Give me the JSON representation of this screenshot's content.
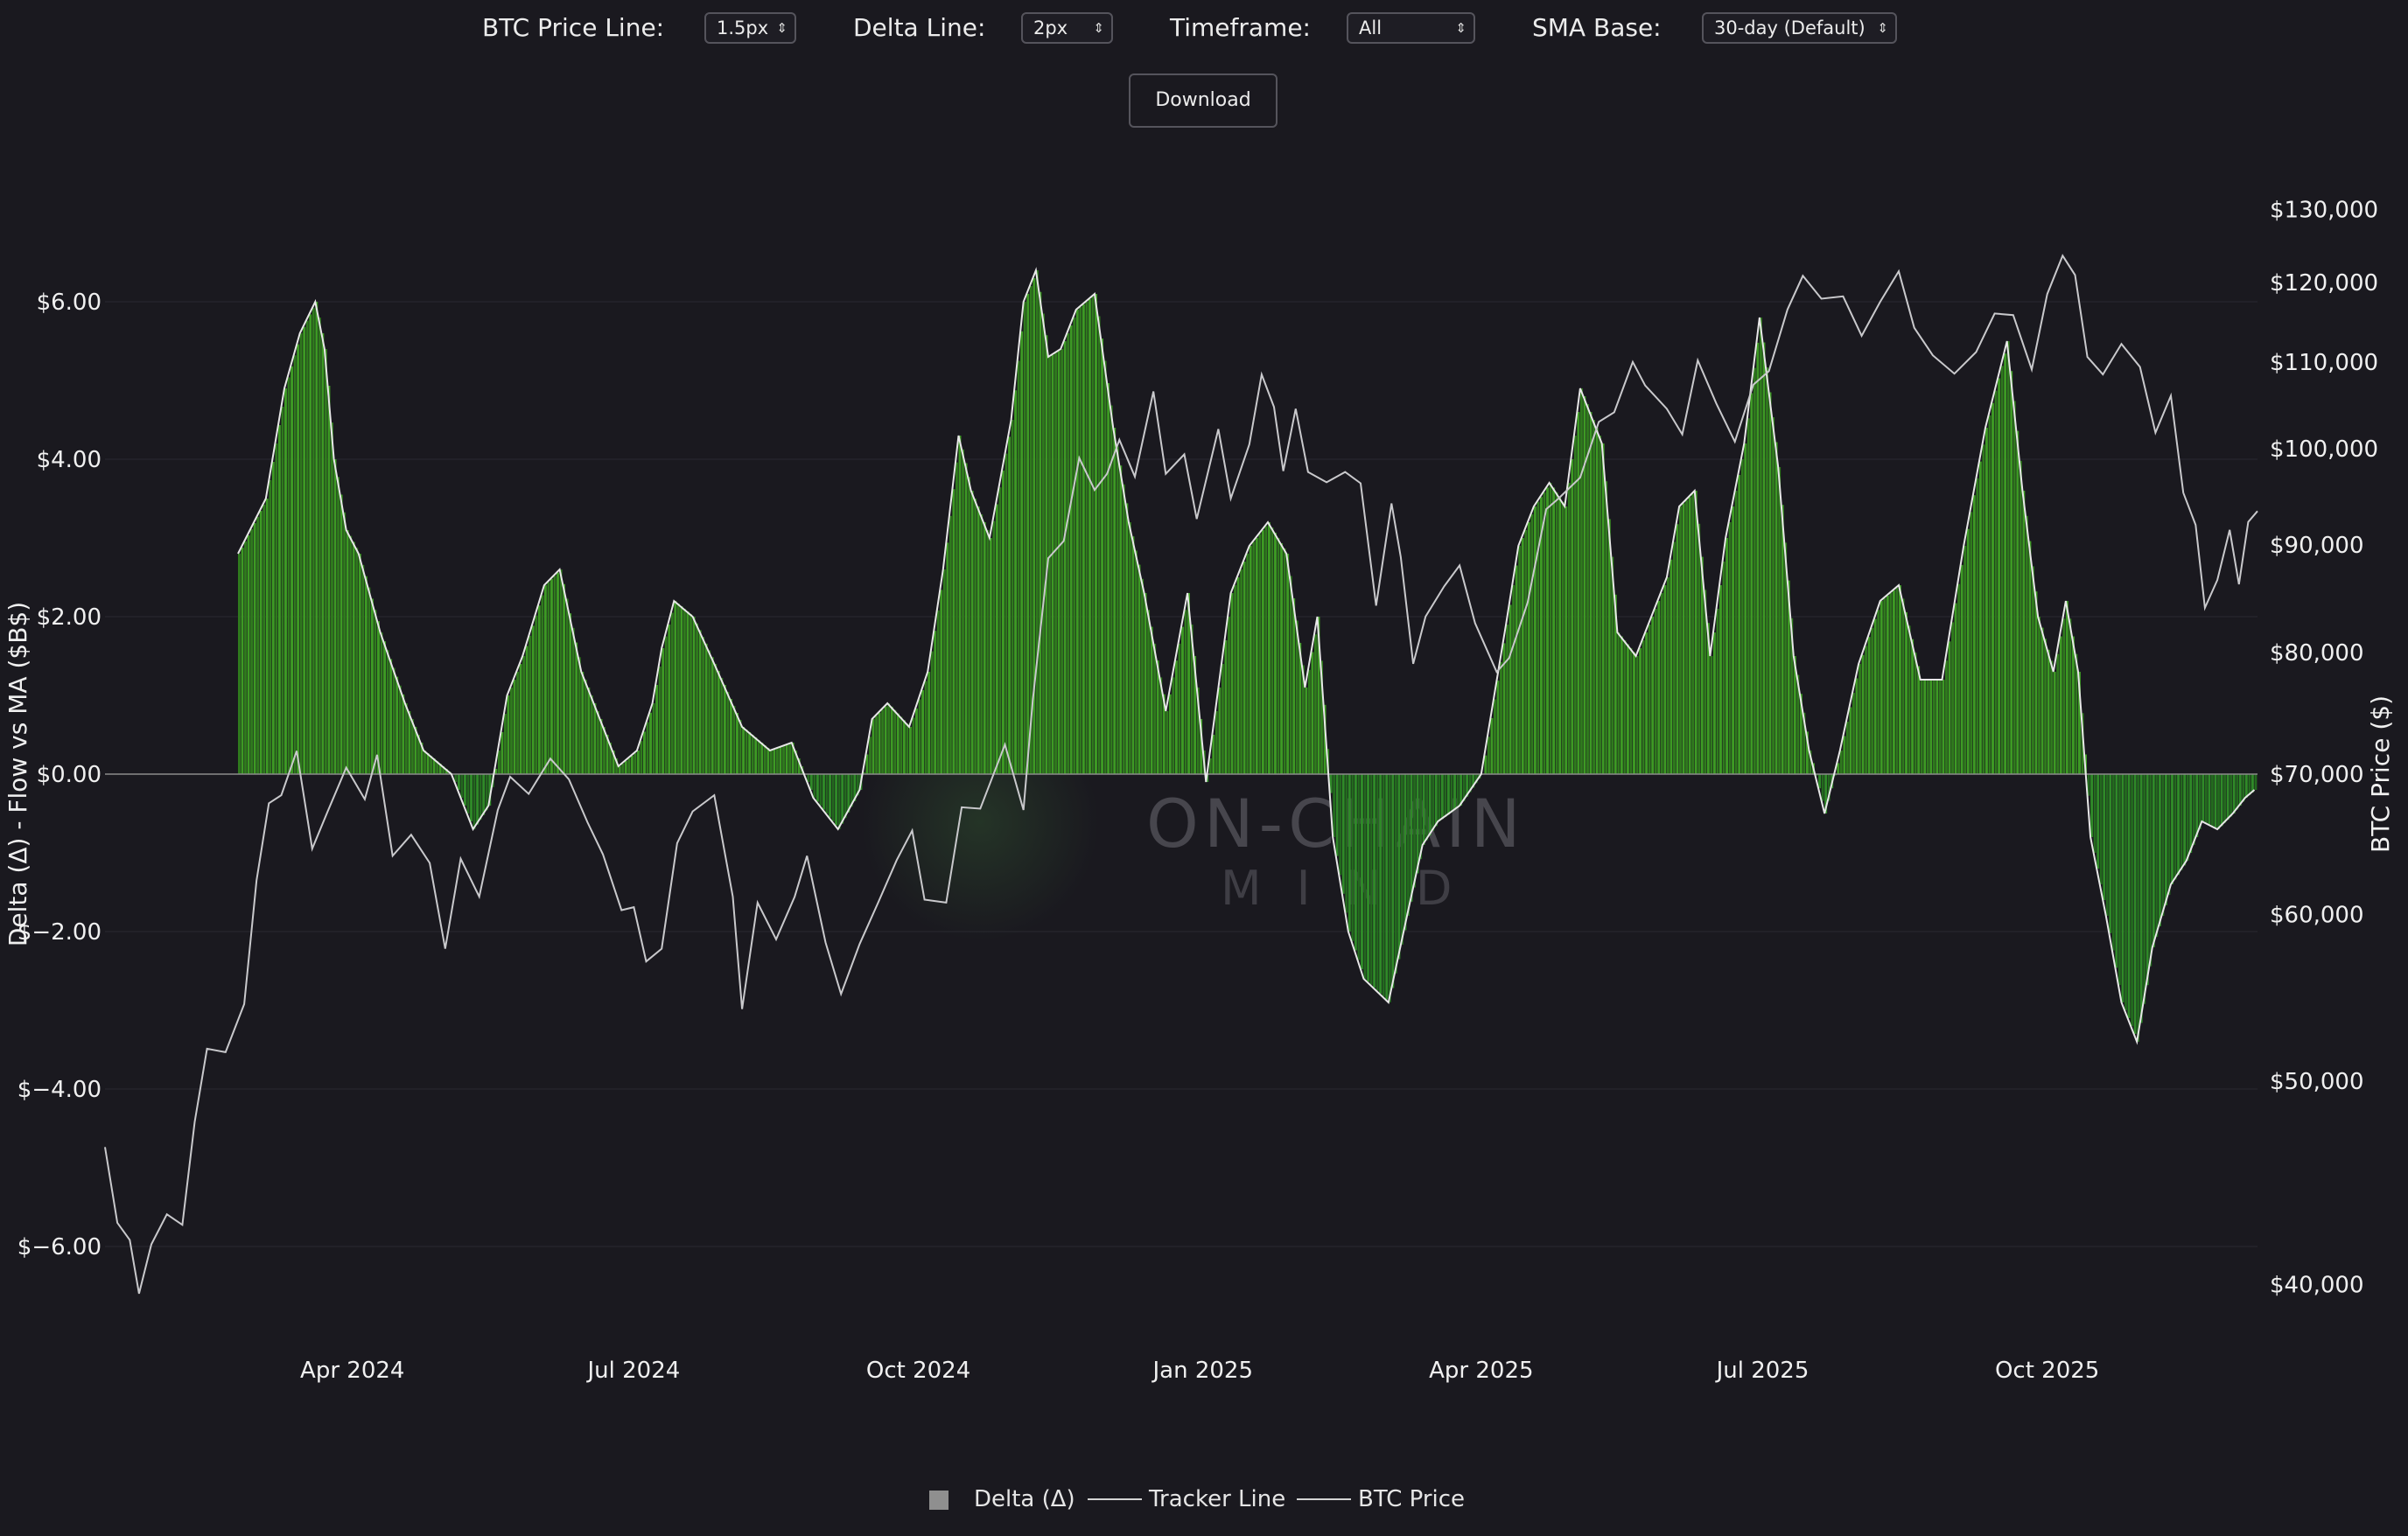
{
  "controls": {
    "price_line_label": "BTC Price Line:",
    "price_line_value": "1.5px",
    "delta_line_label": "Delta Line:",
    "delta_line_value": "2px",
    "timeframe_label": "Timeframe:",
    "timeframe_value": "All",
    "sma_label": "SMA Base:",
    "sma_value": "30-day (Default)",
    "download_label": "Download"
  },
  "watermark": {
    "line1": "ON-CHAIN",
    "line2": "MIND"
  },
  "legend": {
    "delta": "Delta (Δ)",
    "tracker": "Tracker Line",
    "price": "BTC Price"
  },
  "colors": {
    "background": "#1a191f",
    "delta_bar": "#3f9a25",
    "delta_bar_negative": "#2a7a22",
    "line": "#d8d8d8"
  },
  "chart_data": {
    "type": "bar",
    "left_axis": {
      "label": "Delta (Δ) - Flow vs MA ($B$)",
      "ticks": [
        "$6.00",
        "$4.00",
        "$2.00",
        "$0.00",
        "$−2.00",
        "$−4.00",
        "$−6.00"
      ],
      "range": [
        -7,
        7
      ]
    },
    "right_axis": {
      "label": "BTC Price ($)",
      "scale": "log",
      "ticks": [
        "$130,000",
        "$120,000",
        "$110,000",
        "$100,000",
        "$90,000",
        "$80,000",
        "$70,000",
        "$60,000",
        "$50,000",
        "$40,000"
      ],
      "range": [
        38000,
        135000
      ]
    },
    "x_axis": {
      "ticks": [
        "Apr 2024",
        "Jul 2024",
        "Oct 2024",
        "Jan 2025",
        "Apr 2025",
        "Jul 2025",
        "Oct 2025"
      ],
      "range": [
        "2024-01-12",
        "2025-12-08"
      ]
    },
    "delta": {
      "x": [
        "2024-02-24",
        "2024-03-04",
        "2024-03-10",
        "2024-03-15",
        "2024-03-20",
        "2024-03-23",
        "2024-03-26",
        "2024-03-30",
        "2024-04-03",
        "2024-04-10",
        "2024-04-18",
        "2024-04-24",
        "2024-05-03",
        "2024-05-10",
        "2024-05-15",
        "2024-05-21",
        "2024-05-26",
        "2024-06-02",
        "2024-06-07",
        "2024-06-14",
        "2024-06-22",
        "2024-06-26",
        "2024-07-02",
        "2024-07-07",
        "2024-07-10",
        "2024-07-14",
        "2024-07-20",
        "2024-07-27",
        "2024-08-05",
        "2024-08-14",
        "2024-08-21",
        "2024-08-28",
        "2024-09-05",
        "2024-09-12",
        "2024-09-16",
        "2024-09-21",
        "2024-09-28",
        "2024-10-04",
        "2024-10-09",
        "2024-10-14",
        "2024-10-18",
        "2024-10-24",
        "2024-10-31",
        "2024-11-04",
        "2024-11-08",
        "2024-11-12",
        "2024-11-16",
        "2024-11-21",
        "2024-11-27",
        "2024-12-03",
        "2024-12-08",
        "2024-12-13",
        "2024-12-20",
        "2024-12-27",
        "2025-01-02",
        "2025-01-10",
        "2025-01-16",
        "2025-01-22",
        "2025-01-28",
        "2025-02-03",
        "2025-02-07",
        "2025-02-12",
        "2025-02-17",
        "2025-02-22",
        "2025-03-02",
        "2025-03-08",
        "2025-03-13",
        "2025-03-18",
        "2025-03-25",
        "2025-04-01",
        "2025-04-09",
        "2025-04-13",
        "2025-04-18",
        "2025-04-23",
        "2025-04-28",
        "2025-05-03",
        "2025-05-10",
        "2025-05-15",
        "2025-05-21",
        "2025-05-26",
        "2025-05-31",
        "2025-06-04",
        "2025-06-09",
        "2025-06-14",
        "2025-06-19",
        "2025-06-25",
        "2025-06-30",
        "2025-07-06",
        "2025-07-11",
        "2025-07-16",
        "2025-07-21",
        "2025-07-26",
        "2025-08-01",
        "2025-08-08",
        "2025-08-14",
        "2025-08-21",
        "2025-08-28",
        "2025-09-04",
        "2025-09-11",
        "2025-09-18",
        "2025-09-23",
        "2025-09-28",
        "2025-10-03",
        "2025-10-07",
        "2025-10-11",
        "2025-10-15",
        "2025-10-20",
        "2025-10-25",
        "2025-10-30",
        "2025-11-04",
        "2025-11-10",
        "2025-11-15",
        "2025-11-20",
        "2025-11-25",
        "2025-11-30",
        "2025-12-04",
        "2025-12-07"
      ],
      "values": [
        2.8,
        3.5,
        4.9,
        5.6,
        6.0,
        5.4,
        4.0,
        3.1,
        2.8,
        1.8,
        0.9,
        0.3,
        0.0,
        -0.7,
        -0.4,
        1.0,
        1.5,
        2.4,
        2.6,
        1.3,
        0.5,
        0.1,
        0.3,
        0.9,
        1.6,
        2.2,
        2.0,
        1.4,
        0.6,
        0.3,
        0.4,
        -0.3,
        -0.7,
        -0.2,
        0.7,
        0.9,
        0.6,
        1.3,
        2.6,
        4.3,
        3.6,
        3.0,
        4.5,
        6.0,
        6.4,
        5.3,
        5.4,
        5.9,
        6.1,
        4.4,
        3.2,
        2.3,
        0.8,
        2.3,
        -0.1,
        2.3,
        2.9,
        3.2,
        2.8,
        1.1,
        2.0,
        -0.8,
        -2.0,
        -2.6,
        -2.9,
        -1.8,
        -0.9,
        -0.6,
        -0.4,
        0.0,
        1.9,
        2.9,
        3.4,
        3.7,
        3.4,
        4.9,
        4.2,
        1.8,
        1.5,
        2.0,
        2.5,
        3.4,
        3.6,
        1.5,
        3.0,
        4.2,
        5.8,
        3.9,
        1.5,
        0.3,
        -0.5,
        0.3,
        1.4,
        2.2,
        2.4,
        1.2,
        1.2,
        2.9,
        4.4,
        5.5,
        3.6,
        2.0,
        1.3,
        2.2,
        1.3,
        -0.8,
        -1.8,
        -2.9,
        -3.4,
        -2.2,
        -1.4,
        -1.1,
        -0.6,
        -0.7,
        -0.5,
        -0.3,
        -0.2
      ]
    },
    "btc_price": {
      "x": [
        "2024-01-12",
        "2024-01-16",
        "2024-01-20",
        "2024-01-23",
        "2024-01-27",
        "2024-02-01",
        "2024-02-06",
        "2024-02-10",
        "2024-02-14",
        "2024-02-20",
        "2024-02-26",
        "2024-03-01",
        "2024-03-05",
        "2024-03-09",
        "2024-03-14",
        "2024-03-19",
        "2024-03-24",
        "2024-03-30",
        "2024-04-05",
        "2024-04-09",
        "2024-04-14",
        "2024-04-20",
        "2024-04-26",
        "2024-05-01",
        "2024-05-06",
        "2024-05-12",
        "2024-05-18",
        "2024-05-22",
        "2024-05-28",
        "2024-06-04",
        "2024-06-10",
        "2024-06-16",
        "2024-06-21",
        "2024-06-27",
        "2024-07-01",
        "2024-07-05",
        "2024-07-10",
        "2024-07-15",
        "2024-07-20",
        "2024-07-27",
        "2024-08-02",
        "2024-08-05",
        "2024-08-10",
        "2024-08-16",
        "2024-08-22",
        "2024-08-26",
        "2024-09-01",
        "2024-09-06",
        "2024-09-12",
        "2024-09-18",
        "2024-09-24",
        "2024-09-29",
        "2024-10-03",
        "2024-10-10",
        "2024-10-15",
        "2024-10-21",
        "2024-10-29",
        "2024-11-04",
        "2024-11-07",
        "2024-11-12",
        "2024-11-17",
        "2024-11-22",
        "2024-11-27",
        "2024-12-01",
        "2024-12-05",
        "2024-12-10",
        "2024-12-16",
        "2024-12-20",
        "2024-12-26",
        "2024-12-30",
        "2025-01-06",
        "2025-01-10",
        "2025-01-16",
        "2025-01-20",
        "2025-01-24",
        "2025-01-27",
        "2025-01-31",
        "2025-02-04",
        "2025-02-10",
        "2025-02-16",
        "2025-02-21",
        "2025-02-26",
        "2025-03-03",
        "2025-03-06",
        "2025-03-10",
        "2025-03-14",
        "2025-03-20",
        "2025-03-25",
        "2025-03-30",
        "2025-04-06",
        "2025-04-10",
        "2025-04-16",
        "2025-04-22",
        "2025-04-26",
        "2025-05-03",
        "2025-05-09",
        "2025-05-14",
        "2025-05-20",
        "2025-05-24",
        "2025-05-31",
        "2025-06-05",
        "2025-06-10",
        "2025-06-16",
        "2025-06-22",
        "2025-06-28",
        "2025-07-03",
        "2025-07-09",
        "2025-07-14",
        "2025-07-20",
        "2025-07-27",
        "2025-08-02",
        "2025-08-08",
        "2025-08-14",
        "2025-08-19",
        "2025-08-25",
        "2025-09-01",
        "2025-09-08",
        "2025-09-14",
        "2025-09-20",
        "2025-09-26",
        "2025-10-01",
        "2025-10-06",
        "2025-10-10",
        "2025-10-14",
        "2025-10-19",
        "2025-10-25",
        "2025-10-31",
        "2025-11-05",
        "2025-11-10",
        "2025-11-14",
        "2025-11-18",
        "2025-11-21",
        "2025-11-25",
        "2025-11-29",
        "2025-12-02",
        "2025-12-05",
        "2025-12-08"
      ],
      "values": [
        46500,
        42800,
        42000,
        39600,
        41800,
        43200,
        42700,
        47800,
        51800,
        51600,
        54400,
        62300,
        67800,
        68400,
        71800,
        64500,
        67200,
        70500,
        68100,
        71500,
        64000,
        65500,
        63500,
        57800,
        63800,
        61200,
        67300,
        69800,
        68500,
        71200,
        69600,
        66400,
        64100,
        60300,
        60500,
        57000,
        57800,
        64900,
        67200,
        68400,
        61200,
        54100,
        60800,
        58400,
        61200,
        64000,
        58200,
        55000,
        58100,
        60800,
        63700,
        65800,
        61000,
        60800,
        67500,
        67400,
        72300,
        67300,
        75900,
        88700,
        90400,
        99000,
        95600,
        97300,
        101000,
        97000,
        106500,
        97300,
        99400,
        92600,
        102200,
        94700,
        100500,
        108500,
        104700,
        97600,
        104500,
        97500,
        96400,
        97500,
        96300,
        84200,
        94200,
        88800,
        79000,
        83200,
        86000,
        88000,
        82600,
        78300,
        79500,
        84500,
        93600,
        94700,
        96900,
        103000,
        104100,
        110000,
        107200,
        104500,
        101600,
        110200,
        105100,
        100800,
        107300,
        108900,
        116500,
        120900,
        117900,
        118200,
        113200,
        117500,
        121500,
        114200,
        110800,
        108600,
        111200,
        116000,
        115800,
        109100,
        118500,
        123600,
        121000,
        110600,
        108500,
        112200,
        109400,
        101800,
        106000,
        95300,
        92000,
        84000,
        86600,
        91500,
        86200,
        92300,
        93400
      ]
    },
    "tracker": {
      "x": [
        "2024-02-24",
        "2024-03-04",
        "2024-03-10",
        "2024-03-15",
        "2024-03-20",
        "2024-03-23",
        "2024-03-26",
        "2024-03-30",
        "2024-04-03",
        "2024-04-10",
        "2024-04-18",
        "2024-04-24",
        "2024-05-03",
        "2024-05-10",
        "2024-05-15",
        "2024-05-21",
        "2024-05-26",
        "2024-06-02",
        "2024-06-07",
        "2024-06-14",
        "2024-06-22",
        "2024-06-26",
        "2024-07-02",
        "2024-07-07",
        "2024-07-10",
        "2024-07-14",
        "2024-07-20",
        "2024-07-27",
        "2024-08-05",
        "2024-08-14",
        "2024-08-21",
        "2024-08-28",
        "2024-09-05",
        "2024-09-12",
        "2024-09-16",
        "2024-09-21",
        "2024-09-28",
        "2024-10-04",
        "2024-10-09",
        "2024-10-14",
        "2024-10-18",
        "2024-10-24",
        "2024-10-31",
        "2024-11-04",
        "2024-11-08",
        "2024-11-12",
        "2024-11-16",
        "2024-11-21",
        "2024-11-27",
        "2024-12-03",
        "2024-12-08",
        "2024-12-13",
        "2024-12-20",
        "2024-12-27",
        "2025-01-02",
        "2025-01-10",
        "2025-01-16",
        "2025-01-22",
        "2025-01-28",
        "2025-02-03",
        "2025-02-07",
        "2025-02-12",
        "2025-02-17",
        "2025-02-22",
        "2025-03-02",
        "2025-03-08",
        "2025-03-13",
        "2025-03-18",
        "2025-03-25",
        "2025-04-01",
        "2025-04-09",
        "2025-04-13",
        "2025-04-18",
        "2025-04-23",
        "2025-04-28",
        "2025-05-03",
        "2025-05-10",
        "2025-05-15",
        "2025-05-21",
        "2025-05-26",
        "2025-05-31",
        "2025-06-04",
        "2025-06-09",
        "2025-06-14",
        "2025-06-19",
        "2025-06-25",
        "2025-06-30",
        "2025-07-06",
        "2025-07-11",
        "2025-07-16",
        "2025-07-21",
        "2025-07-26",
        "2025-08-01",
        "2025-08-08",
        "2025-08-14",
        "2025-08-21",
        "2025-08-28",
        "2025-09-04",
        "2025-09-11",
        "2025-09-18",
        "2025-09-23",
        "2025-09-28",
        "2025-10-03",
        "2025-10-07",
        "2025-10-11",
        "2025-10-15",
        "2025-10-20",
        "2025-10-25",
        "2025-10-30",
        "2025-11-04",
        "2025-11-10",
        "2025-11-15",
        "2025-11-20",
        "2025-11-25",
        "2025-11-30",
        "2025-12-04",
        "2025-12-07"
      ],
      "values": [
        2.8,
        3.5,
        4.9,
        5.6,
        6.0,
        5.4,
        4.0,
        3.1,
        2.8,
        1.8,
        0.9,
        0.3,
        0.0,
        -0.7,
        -0.4,
        1.0,
        1.5,
        2.4,
        2.6,
        1.3,
        0.5,
        0.1,
        0.3,
        0.9,
        1.6,
        2.2,
        2.0,
        1.4,
        0.6,
        0.3,
        0.4,
        -0.3,
        -0.7,
        -0.2,
        0.7,
        0.9,
        0.6,
        1.3,
        2.6,
        4.3,
        3.6,
        3.0,
        4.5,
        6.0,
        6.4,
        5.3,
        5.4,
        5.9,
        6.1,
        4.4,
        3.2,
        2.3,
        0.8,
        2.3,
        -0.1,
        2.3,
        2.9,
        3.2,
        2.8,
        1.1,
        2.0,
        -0.8,
        -2.0,
        -2.6,
        -2.9,
        -1.8,
        -0.9,
        -0.6,
        -0.4,
        0.0,
        1.9,
        2.9,
        3.4,
        3.7,
        3.4,
        4.9,
        4.2,
        1.8,
        1.5,
        2.0,
        2.5,
        3.4,
        3.6,
        1.5,
        3.0,
        4.2,
        5.8,
        3.9,
        1.5,
        0.3,
        -0.5,
        0.3,
        1.4,
        2.2,
        2.4,
        1.2,
        1.2,
        2.9,
        4.4,
        5.5,
        3.6,
        2.0,
        1.3,
        2.2,
        1.3,
        -0.8,
        -1.8,
        -2.9,
        -3.4,
        -2.2,
        -1.4,
        -1.1,
        -0.6,
        -0.7,
        -0.5,
        -0.3,
        -0.2
      ]
    },
    "grid": true,
    "legend_position": "bottom-center"
  }
}
